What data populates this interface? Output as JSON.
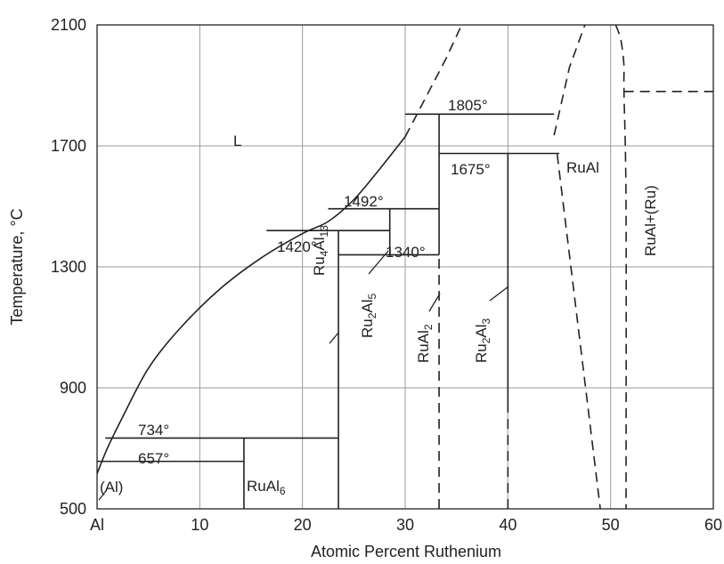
{
  "chart_data": {
    "type": "line",
    "xlabel": "Atomic Percent Ruthenium",
    "ylabel": "Temperature, °C",
    "xlim": [
      0,
      60
    ],
    "ylim": [
      500,
      2100
    ],
    "x_tick_labels": [
      "Al",
      "10",
      "20",
      "30",
      "40",
      "50",
      "60"
    ],
    "y_tick_labels": [
      "500",
      "900",
      "1300",
      "1700",
      "2100"
    ],
    "grid": true,
    "curves": [
      {
        "style": "solid",
        "points": [
          [
            0,
            616
          ],
          [
            1,
            700
          ],
          [
            2.5,
            804
          ],
          [
            5,
            965
          ],
          [
            8,
            1094
          ],
          [
            12,
            1228
          ],
          [
            16,
            1330
          ],
          [
            20,
            1410
          ],
          [
            22.5,
            1450
          ],
          [
            25,
            1522
          ],
          [
            27.5,
            1623
          ],
          [
            30,
            1730
          ]
        ]
      },
      {
        "style": "dashed",
        "points": [
          [
            30,
            1730
          ],
          [
            32,
            1860
          ],
          [
            34,
            1990
          ],
          [
            35.5,
            2100
          ]
        ]
      },
      {
        "style": "dashed",
        "points": [
          [
            44.5,
            1735
          ],
          [
            46,
            1960
          ],
          [
            47.5,
            2100
          ]
        ]
      },
      {
        "style": "dashed",
        "points": [
          [
            50.5,
            2100
          ],
          [
            51,
            2050
          ],
          [
            51.3,
            1965
          ],
          [
            51.3,
            1880
          ],
          [
            51.5,
            1500
          ],
          [
            51.5,
            500
          ]
        ]
      },
      {
        "style": "dashed",
        "points": [
          [
            51.3,
            1880
          ],
          [
            60,
            1880
          ]
        ]
      },
      {
        "style": "dashed",
        "points": [
          [
            44.8,
            1672
          ],
          [
            49,
            500
          ]
        ]
      }
    ],
    "isotherms": [
      {
        "value": 1805,
        "x_range": [
          30,
          44.5
        ],
        "label": "1805°"
      },
      {
        "value": 1675,
        "x_range": [
          33.3,
          45
        ],
        "label": "1675°"
      },
      {
        "value": 1492,
        "x_range": [
          22.5,
          33.3
        ],
        "label": "1492°"
      },
      {
        "value": 1420,
        "x_range": [
          16.5,
          28.5
        ],
        "label": "1420°"
      },
      {
        "value": 1340,
        "x_range": [
          23.5,
          33.3
        ],
        "label": "1340°"
      },
      {
        "value": 734,
        "x_range": [
          0.8,
          23.5
        ],
        "label": "734°"
      },
      {
        "value": 657,
        "x_range": [
          0,
          14.3
        ],
        "label": "657°"
      }
    ],
    "compounds": [
      {
        "x": 14.3,
        "y_range": [
          500,
          734
        ],
        "style": "solid"
      },
      {
        "x": 23.5,
        "y_range": [
          500,
          1420
        ],
        "style": "solid"
      },
      {
        "x": 28.5,
        "y_range": [
          1340,
          1492
        ],
        "style": "solid"
      },
      {
        "x": 33.3,
        "y_range": [
          1340,
          1805
        ],
        "style": "solid"
      },
      {
        "x": 33.3,
        "y_range": [
          500,
          1340
        ],
        "style": "dashed"
      },
      {
        "x": 40,
        "y_range": [
          820,
          1675
        ],
        "style": "solid"
      },
      {
        "x": 40,
        "y_range": [
          500,
          820
        ],
        "style": "dashed"
      }
    ],
    "phase_labels": [
      {
        "text": "L"
      },
      {
        "text": "(Al)"
      },
      {
        "text": "RuAl6"
      },
      {
        "text": "Ru4Al13"
      },
      {
        "text": "Ru2Al5"
      },
      {
        "text": "RuAl2"
      },
      {
        "text": "Ru2Al3"
      },
      {
        "text": "RuAl"
      },
      {
        "text": "RuAl+(Ru)"
      }
    ]
  }
}
